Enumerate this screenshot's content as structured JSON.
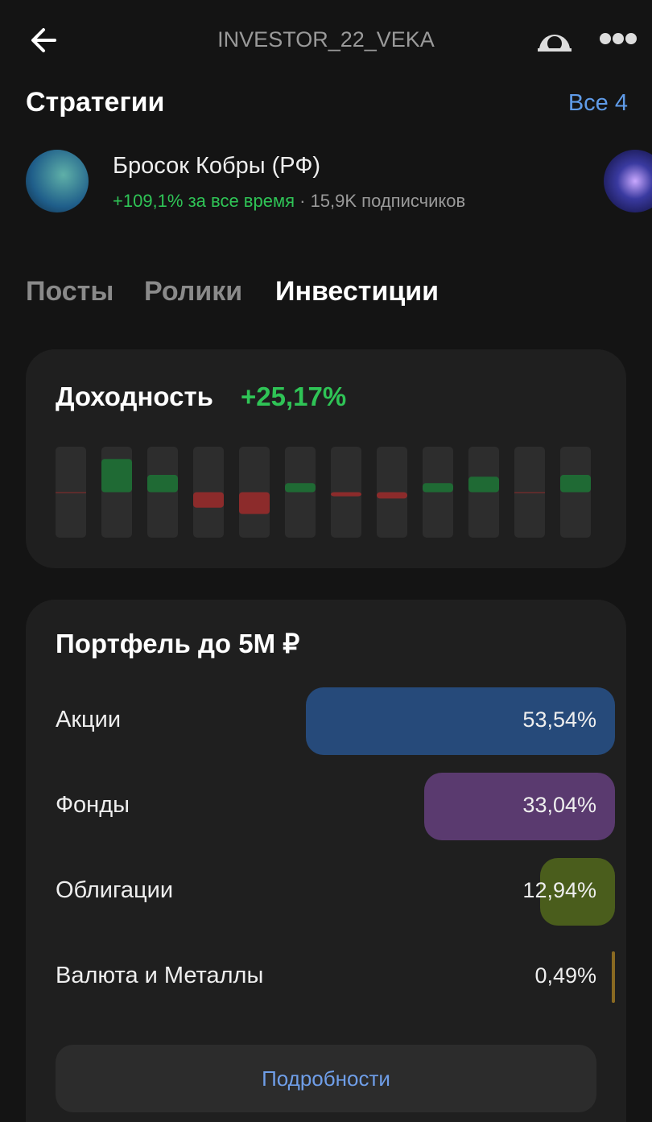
{
  "header": {
    "title": "INVESTOR_22_VEKA"
  },
  "strategies": {
    "title": "Стратегии",
    "all_link": "Все 4",
    "items": [
      {
        "name": "Бросок Кобры (РФ)",
        "return": "+109,1% за все время",
        "subscribers": "· 15,9K подписчиков"
      }
    ]
  },
  "tabs": [
    "Посты",
    "Ролики",
    "Инвестиции"
  ],
  "returns": {
    "title": "Доходность",
    "total": "+25,17%",
    "monthly": {
      "values": [
        -0.1,
        7.3,
        3.8,
        -3.4,
        -4.8,
        2,
        -0.9,
        -1.4,
        2,
        3.4,
        -0.1,
        3.8
      ],
      "ylim": [
        -10,
        10
      ],
      "positive_color": "#1f6a34",
      "negative_color": "#8c2b2b"
    }
  },
  "portfolio": {
    "title": "Портфель до 5М ₽",
    "xlim": [
      0,
      100
    ],
    "items": [
      {
        "name": "Акции",
        "value": 53.54,
        "value_label": "53,54%",
        "color": "#264a7a"
      },
      {
        "name": "Фонды",
        "value": 33.04,
        "value_label": "33,04%",
        "color": "#5a3a6f"
      },
      {
        "name": "Облигации",
        "value": 12.94,
        "value_label": "12,94%",
        "color": "#4a5d1c"
      },
      {
        "name": "Валюта и Металлы",
        "value": 0.49,
        "value_label": "0,49%",
        "color": "#8a6a22"
      }
    ],
    "details_button": "Подробности"
  }
}
